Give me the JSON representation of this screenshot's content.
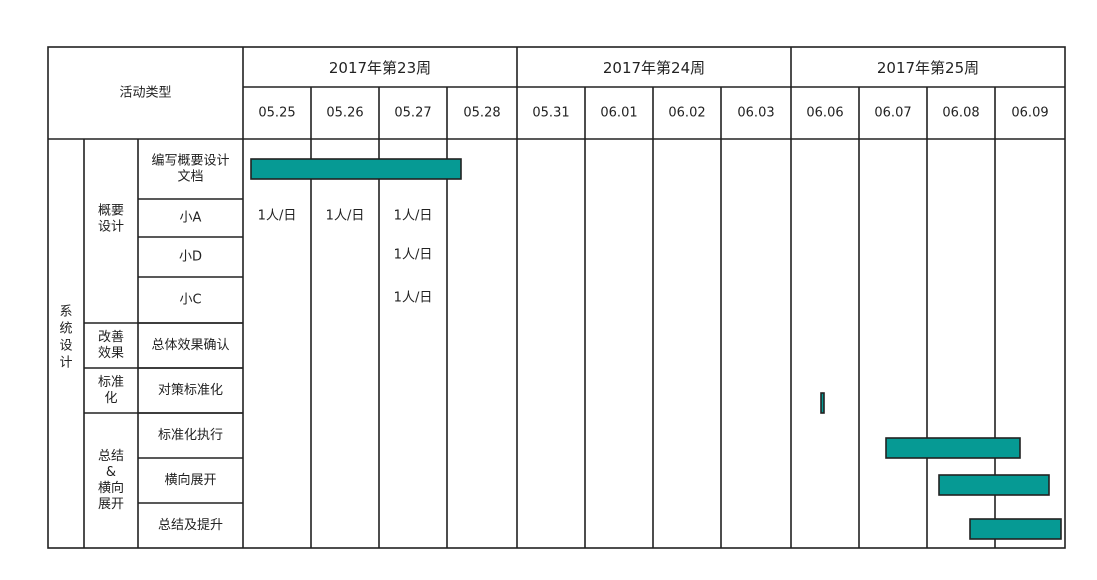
{
  "header": {
    "corner_label": "活动类型",
    "weeks": [
      "2017年第23周",
      "2017年第24周",
      "2017年第25周"
    ],
    "dates": [
      "05.25",
      "05.26",
      "05.27",
      "05.28",
      "05.31",
      "06.01",
      "06.02",
      "06.03",
      "06.06",
      "06.07",
      "06.08",
      "06.09"
    ]
  },
  "group": [
    "系",
    "统",
    "设",
    "计"
  ],
  "phases": [
    [
      "概要",
      "设计"
    ],
    [
      "改善",
      "效果"
    ],
    [
      "标准",
      "化"
    ],
    [
      "总结",
      "&",
      "横向",
      "展开"
    ]
  ],
  "tasks": [
    [
      "编写概要设计",
      "文档"
    ],
    [
      "小A"
    ],
    [
      "小D"
    ],
    [
      "小C"
    ],
    [
      "总体效果确认"
    ],
    [
      "对策标准化"
    ],
    [
      "标准化执行"
    ],
    [
      "横向展开"
    ],
    [
      "总结及提升"
    ]
  ],
  "cell_labels": [
    {
      "task": 1,
      "date": "05.25",
      "text": "1人/日"
    },
    {
      "task": 1,
      "date": "05.26",
      "text": "1人/日"
    },
    {
      "task": 1,
      "date": "05.27",
      "text": "1人/日"
    },
    {
      "task": 2,
      "date": "05.27",
      "text": "1人/日"
    },
    {
      "task": 3,
      "date": "05.27",
      "text": "1人/日"
    }
  ],
  "chart_data": {
    "type": "gantt",
    "bar_color": "#069a94",
    "bars": [
      {
        "task": "编写概要设计文档",
        "start": "05.25",
        "end": "05.27"
      },
      {
        "task": "对策标准化",
        "start": "06.06",
        "end": "06.06"
      },
      {
        "task": "标准化执行",
        "start": "06.07",
        "end": "06.08"
      },
      {
        "task": "横向展开",
        "start": "06.08",
        "end": "06.08"
      },
      {
        "task": "总结及提升",
        "start": "06.08",
        "end": "06.09"
      }
    ]
  }
}
